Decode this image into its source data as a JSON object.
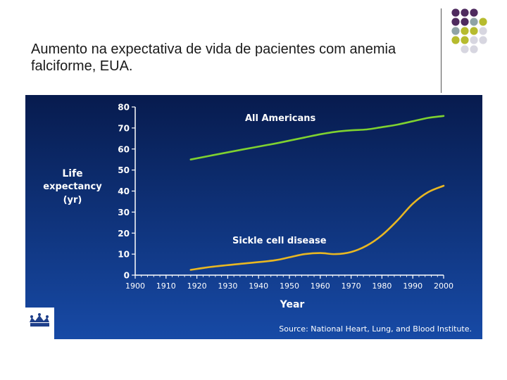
{
  "slide": {
    "title": "Aumento na expectativa de vida de pacientes com anemia falciforme, EUA.",
    "dot_colors": [
      "#4e2a5e",
      "#8fa3a6",
      "#b6bb2e",
      "#d7d6e0"
    ]
  },
  "chart_data": {
    "type": "line",
    "ylabel": [
      "Life",
      "expectancy",
      "(yr)"
    ],
    "xlabel": "Year",
    "xlim": [
      1900,
      2000
    ],
    "ylim": [
      0,
      80
    ],
    "x_ticks": [
      1900,
      1910,
      1920,
      1930,
      1940,
      1950,
      1960,
      1970,
      1980,
      1990,
      2000
    ],
    "y_ticks": [
      0,
      10,
      20,
      30,
      40,
      50,
      60,
      70,
      80
    ],
    "grid": false,
    "background_colors": [
      "#071b4e",
      "#174aa6"
    ],
    "series": [
      {
        "name": "All Americans",
        "color": "#7fd230",
        "x": [
          1918,
          1925,
          1935,
          1945,
          1950,
          1955,
          1960,
          1965,
          1970,
          1975,
          1980,
          1985,
          1990,
          1995,
          2000
        ],
        "y": [
          55,
          57,
          59.8,
          62.5,
          64,
          65.5,
          67,
          68.2,
          68.9,
          69.3,
          70.4,
          71.6,
          73.2,
          74.8,
          75.7
        ]
      },
      {
        "name": "Sickle cell disease",
        "color": "#e8b722",
        "x": [
          1918,
          1925,
          1935,
          1945,
          1950,
          1955,
          1960,
          1965,
          1970,
          1975,
          1980,
          1985,
          1990,
          1995,
          2000
        ],
        "y": [
          2.5,
          4,
          5.5,
          7,
          8.5,
          10,
          10.5,
          10,
          11,
          14,
          19,
          26,
          34,
          39.5,
          42.5
        ]
      }
    ],
    "source": "Source: National Heart, Lung, and Blood Institute."
  }
}
